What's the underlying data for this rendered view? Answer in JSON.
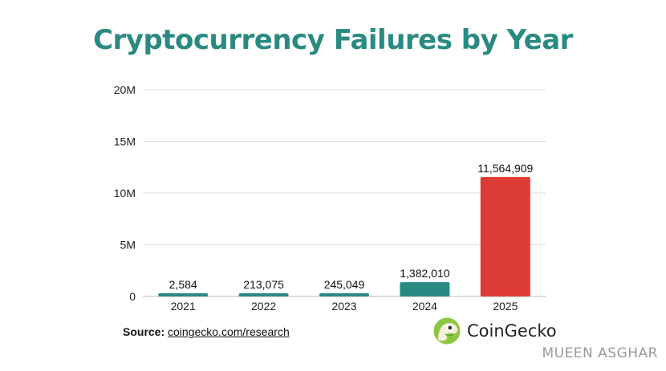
{
  "chart_data": {
    "type": "bar",
    "title": "Cryptocurrency Failures by Year",
    "categories": [
      "2021",
      "2022",
      "2023",
      "2024",
      "2025"
    ],
    "values": [
      2584,
      213075,
      245049,
      1382010,
      11564909
    ],
    "value_labels": [
      "2,584",
      "213,075",
      "245,049",
      "1,382,010",
      "11,564,909"
    ],
    "bar_colors": [
      "#2a8a82",
      "#2a8a82",
      "#2a8a82",
      "#2a8a82",
      "#dc3b36"
    ],
    "ylim": [
      0,
      20000000
    ],
    "yticks": [
      0,
      5000000,
      10000000,
      15000000,
      20000000
    ],
    "ytick_labels": [
      "0",
      "5M",
      "10M",
      "15M",
      "20M"
    ],
    "xlabel": "",
    "ylabel": "",
    "grid": true
  },
  "source": {
    "prefix": "Source:",
    "link": "coingecko.com/research"
  },
  "brand": {
    "name": "CoinGecko",
    "icon": "gecko-logo-icon"
  },
  "author": "MUEEN ASGHAR",
  "colors": {
    "title": "#2a8a82",
    "teal": "#2a8a82",
    "red": "#dc3b36",
    "grid": "#dddddd"
  }
}
